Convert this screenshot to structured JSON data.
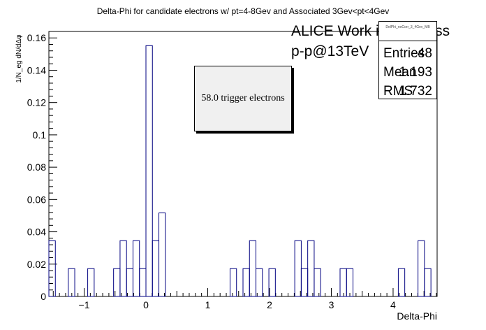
{
  "chart_data": {
    "type": "bar",
    "title": "Delta-Phi for candidate electrons w/ pt=4-8Gev and Associated 3Gev<pt<4Gev",
    "xlabel": "Delta-Phi",
    "ylabel": "1/N_eg dN/dΔφ",
    "xlim": [
      -1.5708,
      4.7124
    ],
    "ylim": [
      0,
      0.164
    ],
    "xticks": [
      -1,
      0,
      1,
      2,
      3,
      4
    ],
    "yticks": [
      0,
      0.02,
      0.04,
      0.06,
      0.08,
      0.1,
      0.12,
      0.14,
      0.16
    ],
    "bin_width": 0.1047,
    "bins": [
      {
        "x": -1.5708,
        "y": 0.0345
      },
      {
        "x": -1.2566,
        "y": 0.0172
      },
      {
        "x": -0.9425,
        "y": 0.0172
      },
      {
        "x": -0.5236,
        "y": 0.0172
      },
      {
        "x": -0.4189,
        "y": 0.0345
      },
      {
        "x": -0.3142,
        "y": 0.0172
      },
      {
        "x": -0.2094,
        "y": 0.0345
      },
      {
        "x": -0.1047,
        "y": 0.0172
      },
      {
        "x": 0.0,
        "y": 0.1552
      },
      {
        "x": 0.1047,
        "y": 0.0345
      },
      {
        "x": 0.2094,
        "y": 0.0517
      },
      {
        "x": 1.3614,
        "y": 0.0172
      },
      {
        "x": 1.5708,
        "y": 0.0172
      },
      {
        "x": 1.6755,
        "y": 0.0345
      },
      {
        "x": 1.7802,
        "y": 0.0172
      },
      {
        "x": 1.9897,
        "y": 0.0172
      },
      {
        "x": 2.4086,
        "y": 0.0345
      },
      {
        "x": 2.5133,
        "y": 0.0172
      },
      {
        "x": 2.618,
        "y": 0.0345
      },
      {
        "x": 2.7227,
        "y": 0.0172
      },
      {
        "x": 3.1416,
        "y": 0.0172
      },
      {
        "x": 3.2463,
        "y": 0.0172
      },
      {
        "x": 4.0841,
        "y": 0.0172
      },
      {
        "x": 4.403,
        "y": 0.0345
      },
      {
        "x": 4.5077,
        "y": 0.0172
      }
    ],
    "line_color": "#000080"
  },
  "stats": {
    "name": "DelPhi_noCorr_3_4Gev_MB",
    "entries_label": "Entries",
    "entries": "48",
    "mean_label": "Mean",
    "mean": "1.193",
    "rms_label": "RMS",
    "rms": "1.732"
  },
  "annotations": {
    "alice": "ALICE Work in Progress",
    "collision": "p-p@13TeV",
    "trigger": "58.0 trigger electrons"
  }
}
